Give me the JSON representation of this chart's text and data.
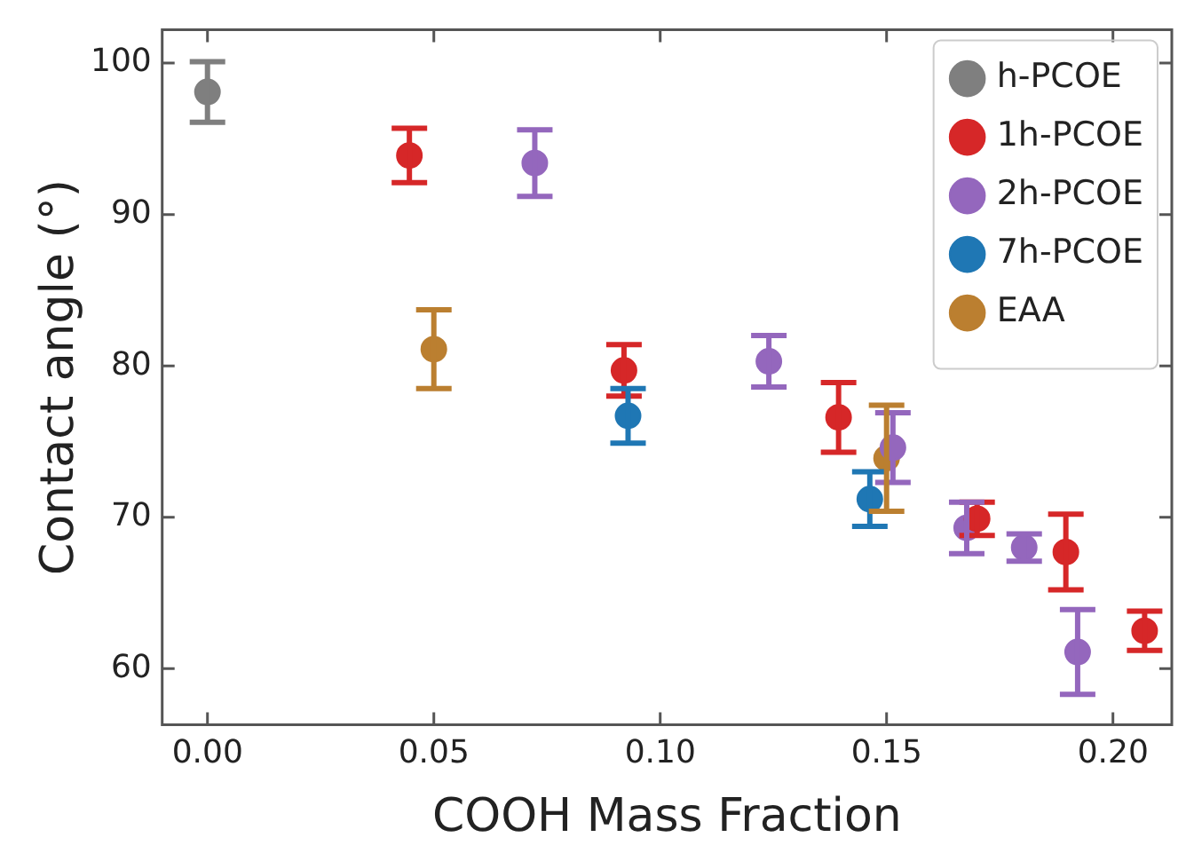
{
  "chart_data": {
    "type": "scatter",
    "xlabel": "COOH Mass Fraction",
    "ylabel": "Contact angle (°)",
    "xlim": [
      -0.01,
      0.213
    ],
    "ylim": [
      56.3,
      102.2
    ],
    "xticks": [
      {
        "value": 0,
        "label": "0.00"
      },
      {
        "value": 0.05,
        "label": "0.05"
      },
      {
        "value": 0.1,
        "label": "0.10"
      },
      {
        "value": 0.15,
        "label": "0.15"
      },
      {
        "value": 0.2,
        "label": "0.20"
      }
    ],
    "yticks": [
      60,
      70,
      80,
      90,
      100
    ],
    "grid": false,
    "legend": "top right",
    "marker": "circle",
    "series": [
      {
        "name": "h-PCOE",
        "color": "#7f7f7f",
        "x": [
          0
        ],
        "values": [
          98.1
        ],
        "errors": [
          2
        ]
      },
      {
        "name": "1h-PCOE",
        "color": "#d62728",
        "x": [
          0.0446,
          0.092,
          0.1394,
          0.17,
          0.1896,
          0.207
        ],
        "values": [
          93.9,
          79.7,
          76.6,
          69.9,
          67.7,
          62.5
        ],
        "errors": [
          1.8,
          1.7,
          2.3,
          1.1,
          2.5,
          1.3
        ]
      },
      {
        "name": "2h-PCOE",
        "color": "#9467bd",
        "x": [
          0.0723,
          0.124,
          0.1514,
          0.1677,
          0.1804,
          0.1922
        ],
        "values": [
          93.4,
          80.3,
          74.6,
          69.3,
          68.0,
          61.1
        ],
        "errors": [
          2.2,
          1.7,
          2.3,
          1.7,
          0.9,
          2.8
        ]
      },
      {
        "name": "7h-PCOE",
        "color": "#1f77b4",
        "x": [
          0.0929,
          0.1463
        ],
        "values": [
          76.7,
          71.2
        ],
        "errors": [
          1.8,
          1.8
        ]
      },
      {
        "name": "EAA",
        "color": "#bb7f30",
        "x": [
          0.05,
          0.15
        ],
        "values": [
          81.1,
          73.9
        ],
        "errors": [
          2.6,
          3.5
        ]
      }
    ]
  }
}
